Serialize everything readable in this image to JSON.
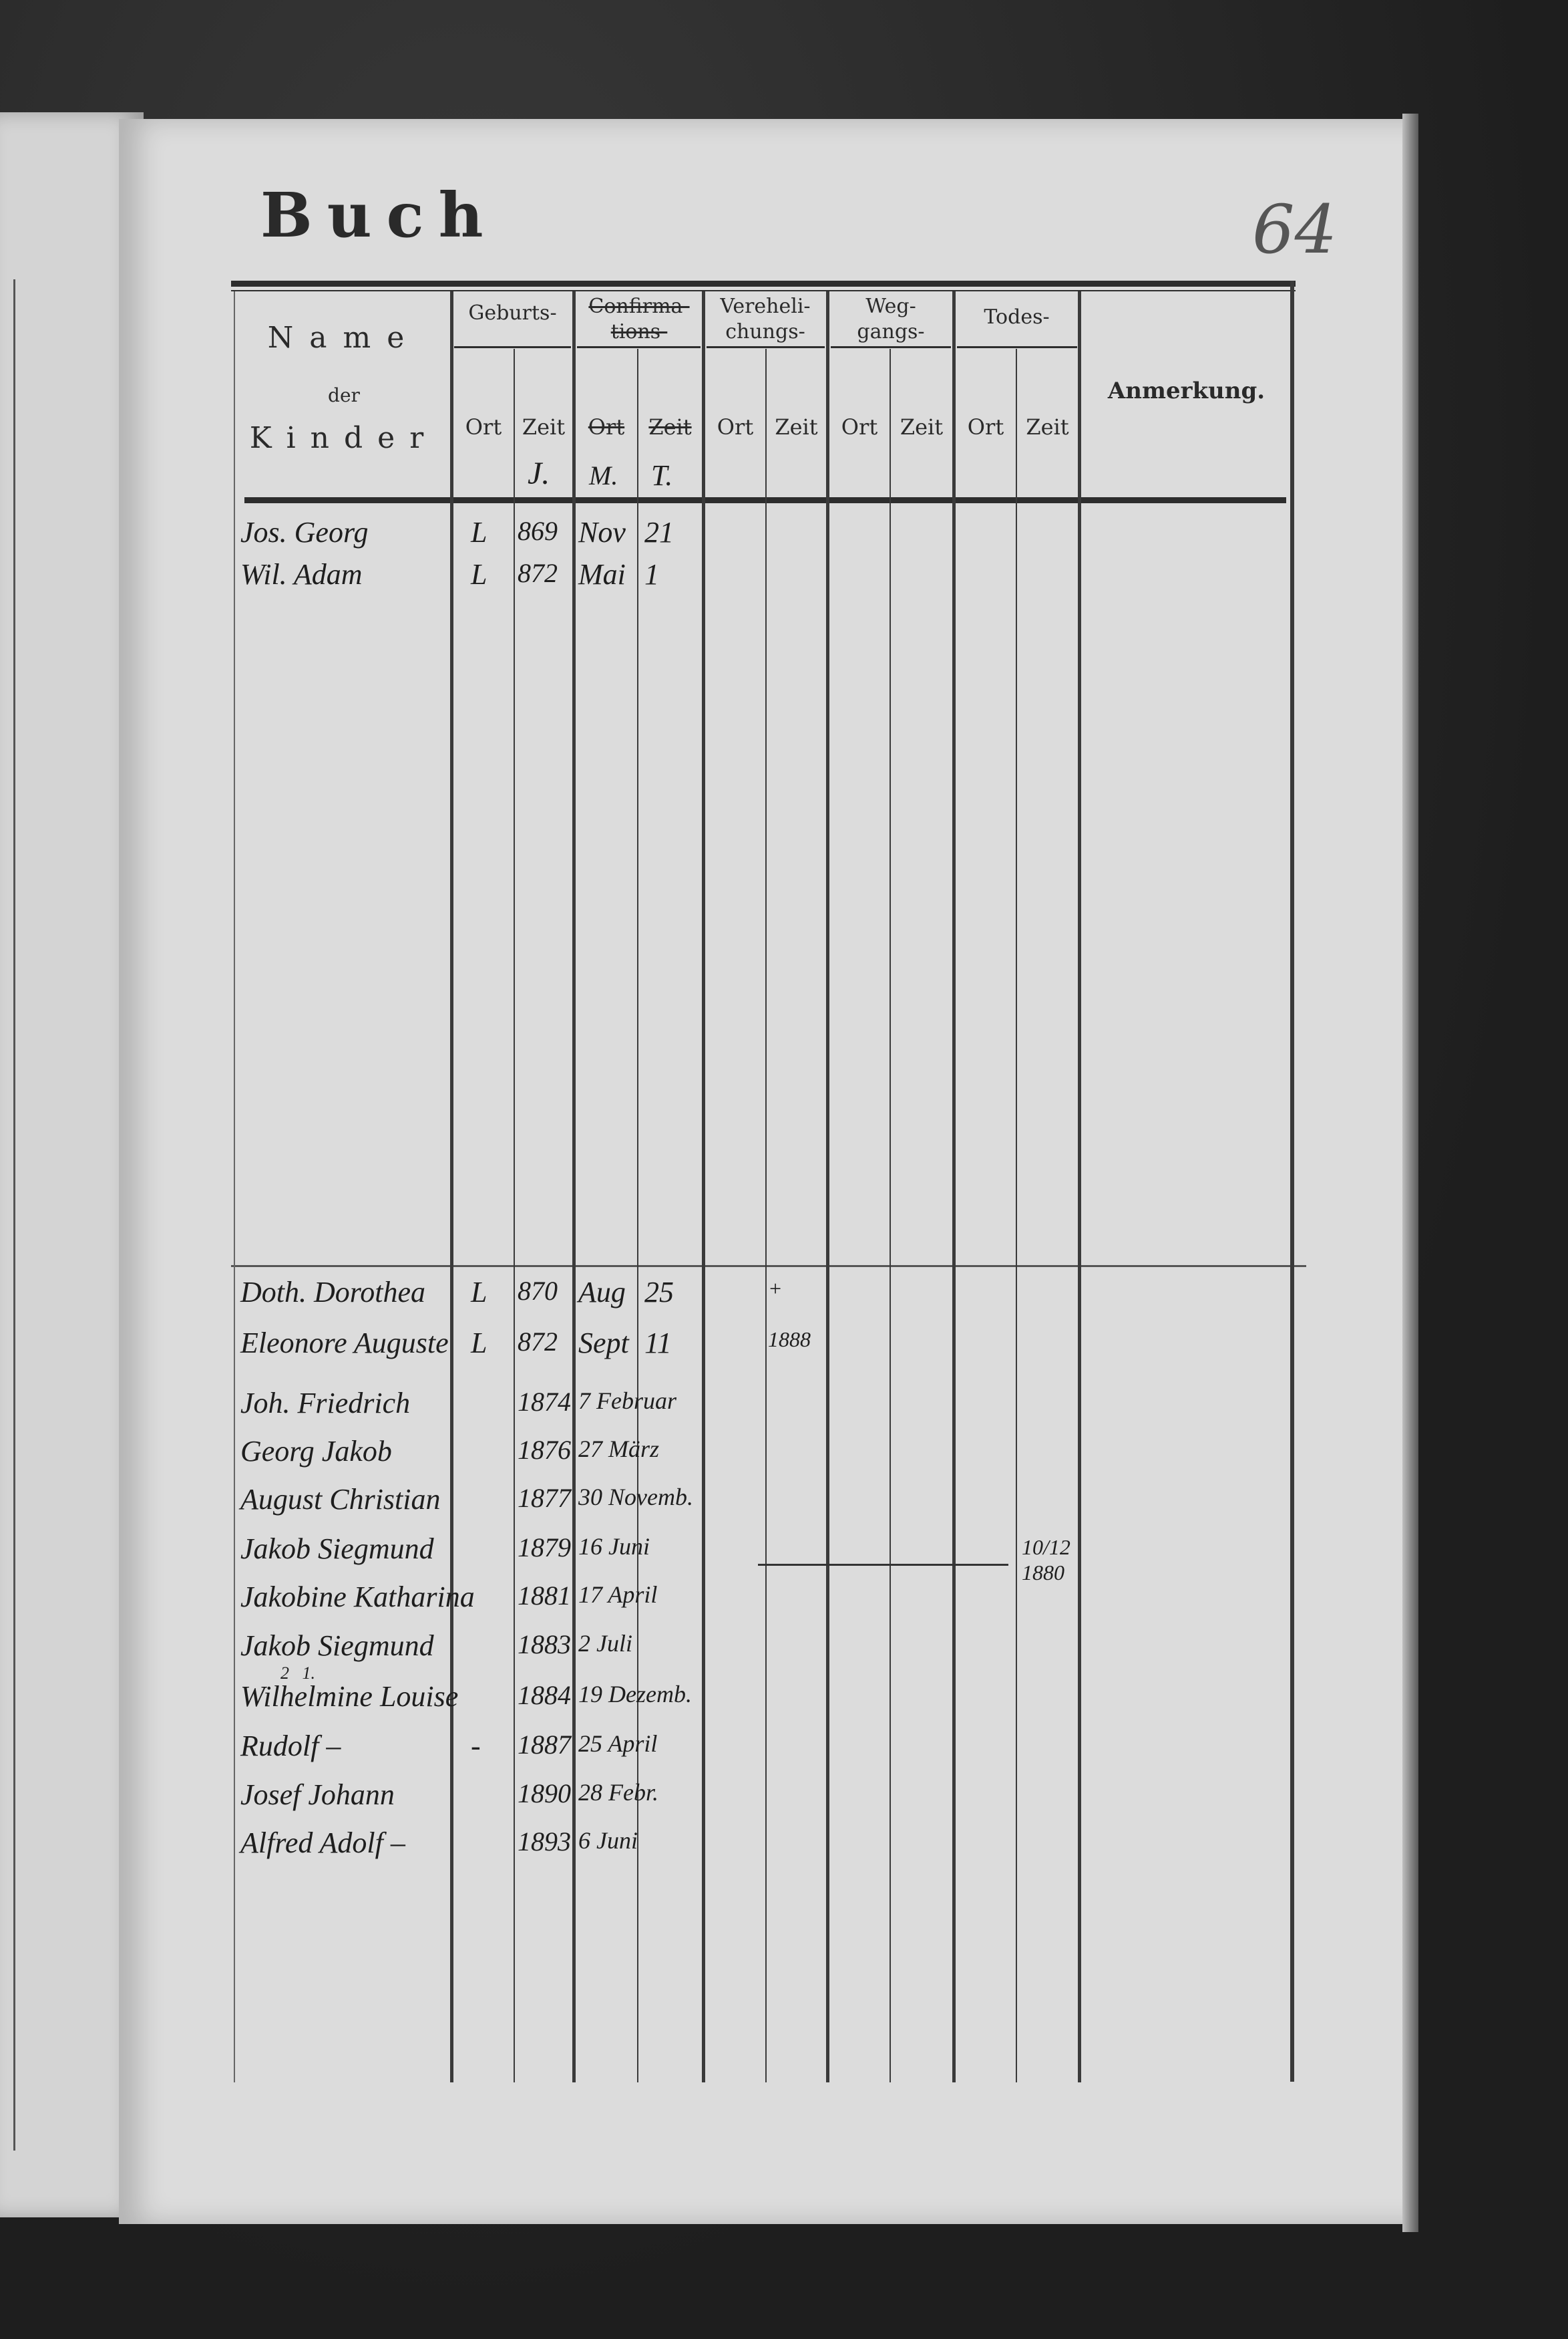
{
  "page": {
    "title": "Buch",
    "folio_number": "64"
  },
  "table": {
    "header": {
      "name_line1": "Name",
      "name_line2": "der",
      "name_line3": "Kinder",
      "birth": "Geburts-",
      "confirmation_line1": "Confirma-",
      "confirmation_line2": "tions-",
      "marriage_line1": "Vereheli-",
      "marriage_line2": "chungs-",
      "departure_line1": "Weg-",
      "departure_line2": "gangs-",
      "death": "Todes-",
      "remark": "Anmerkung.",
      "place": "Ort",
      "time": "Zeit",
      "birth_time_note": "J.",
      "confirmation_month_note": "M.",
      "confirmation_day_note": "T."
    },
    "rows": [
      {
        "name": "Jos. Georg",
        "birth_place": "L",
        "birth_year": "869",
        "conf_a": "Nov",
        "conf_b": "21"
      },
      {
        "name": "Wil. Adam",
        "birth_place": "L",
        "birth_year": "872",
        "conf_a": "Mai",
        "conf_b": "1"
      },
      {
        "name": "Doth. Dorothea",
        "birth_place": "L",
        "birth_year": "870",
        "conf_a": "Aug",
        "conf_b": "25",
        "marriage_time": "+"
      },
      {
        "name": "Eleonore Auguste",
        "birth_place": "L",
        "birth_year": "872",
        "conf_a": "Sept",
        "conf_b": "11",
        "marriage_time": "1888"
      },
      {
        "name": "Joh. Friedrich",
        "birth_year": "1874",
        "conf_a": "7 Februar"
      },
      {
        "name": "Georg Jakob",
        "birth_year": "1876",
        "conf_a": "27 März"
      },
      {
        "name": "August Christian",
        "birth_year": "1877",
        "conf_a": "30 Novemb."
      },
      {
        "name": "Jakob Siegmund",
        "birth_year": "1879",
        "conf_a": "16 Juni",
        "death_time": "10/12 1880"
      },
      {
        "name": "Jakobine Katharina",
        "birth_year": "1881",
        "conf_a": "17 April"
      },
      {
        "name": "Jakob Siegmund",
        "birth_year": "1883",
        "conf_a": "2 Juli"
      },
      {
        "name": "Wilhelmine Louise",
        "name_marks": "2   1.",
        "birth_year": "1884",
        "conf_a": "19 Dezemb."
      },
      {
        "name": "Rudolf –",
        "birth_place": "-",
        "birth_year": "1887",
        "conf_a": "25 April"
      },
      {
        "name": "Josef Johann",
        "birth_year": "1890",
        "conf_a": "28 Febr."
      },
      {
        "name": "Alfred Adolf –",
        "birth_year": "1893",
        "conf_a": "6 Juni"
      }
    ]
  }
}
